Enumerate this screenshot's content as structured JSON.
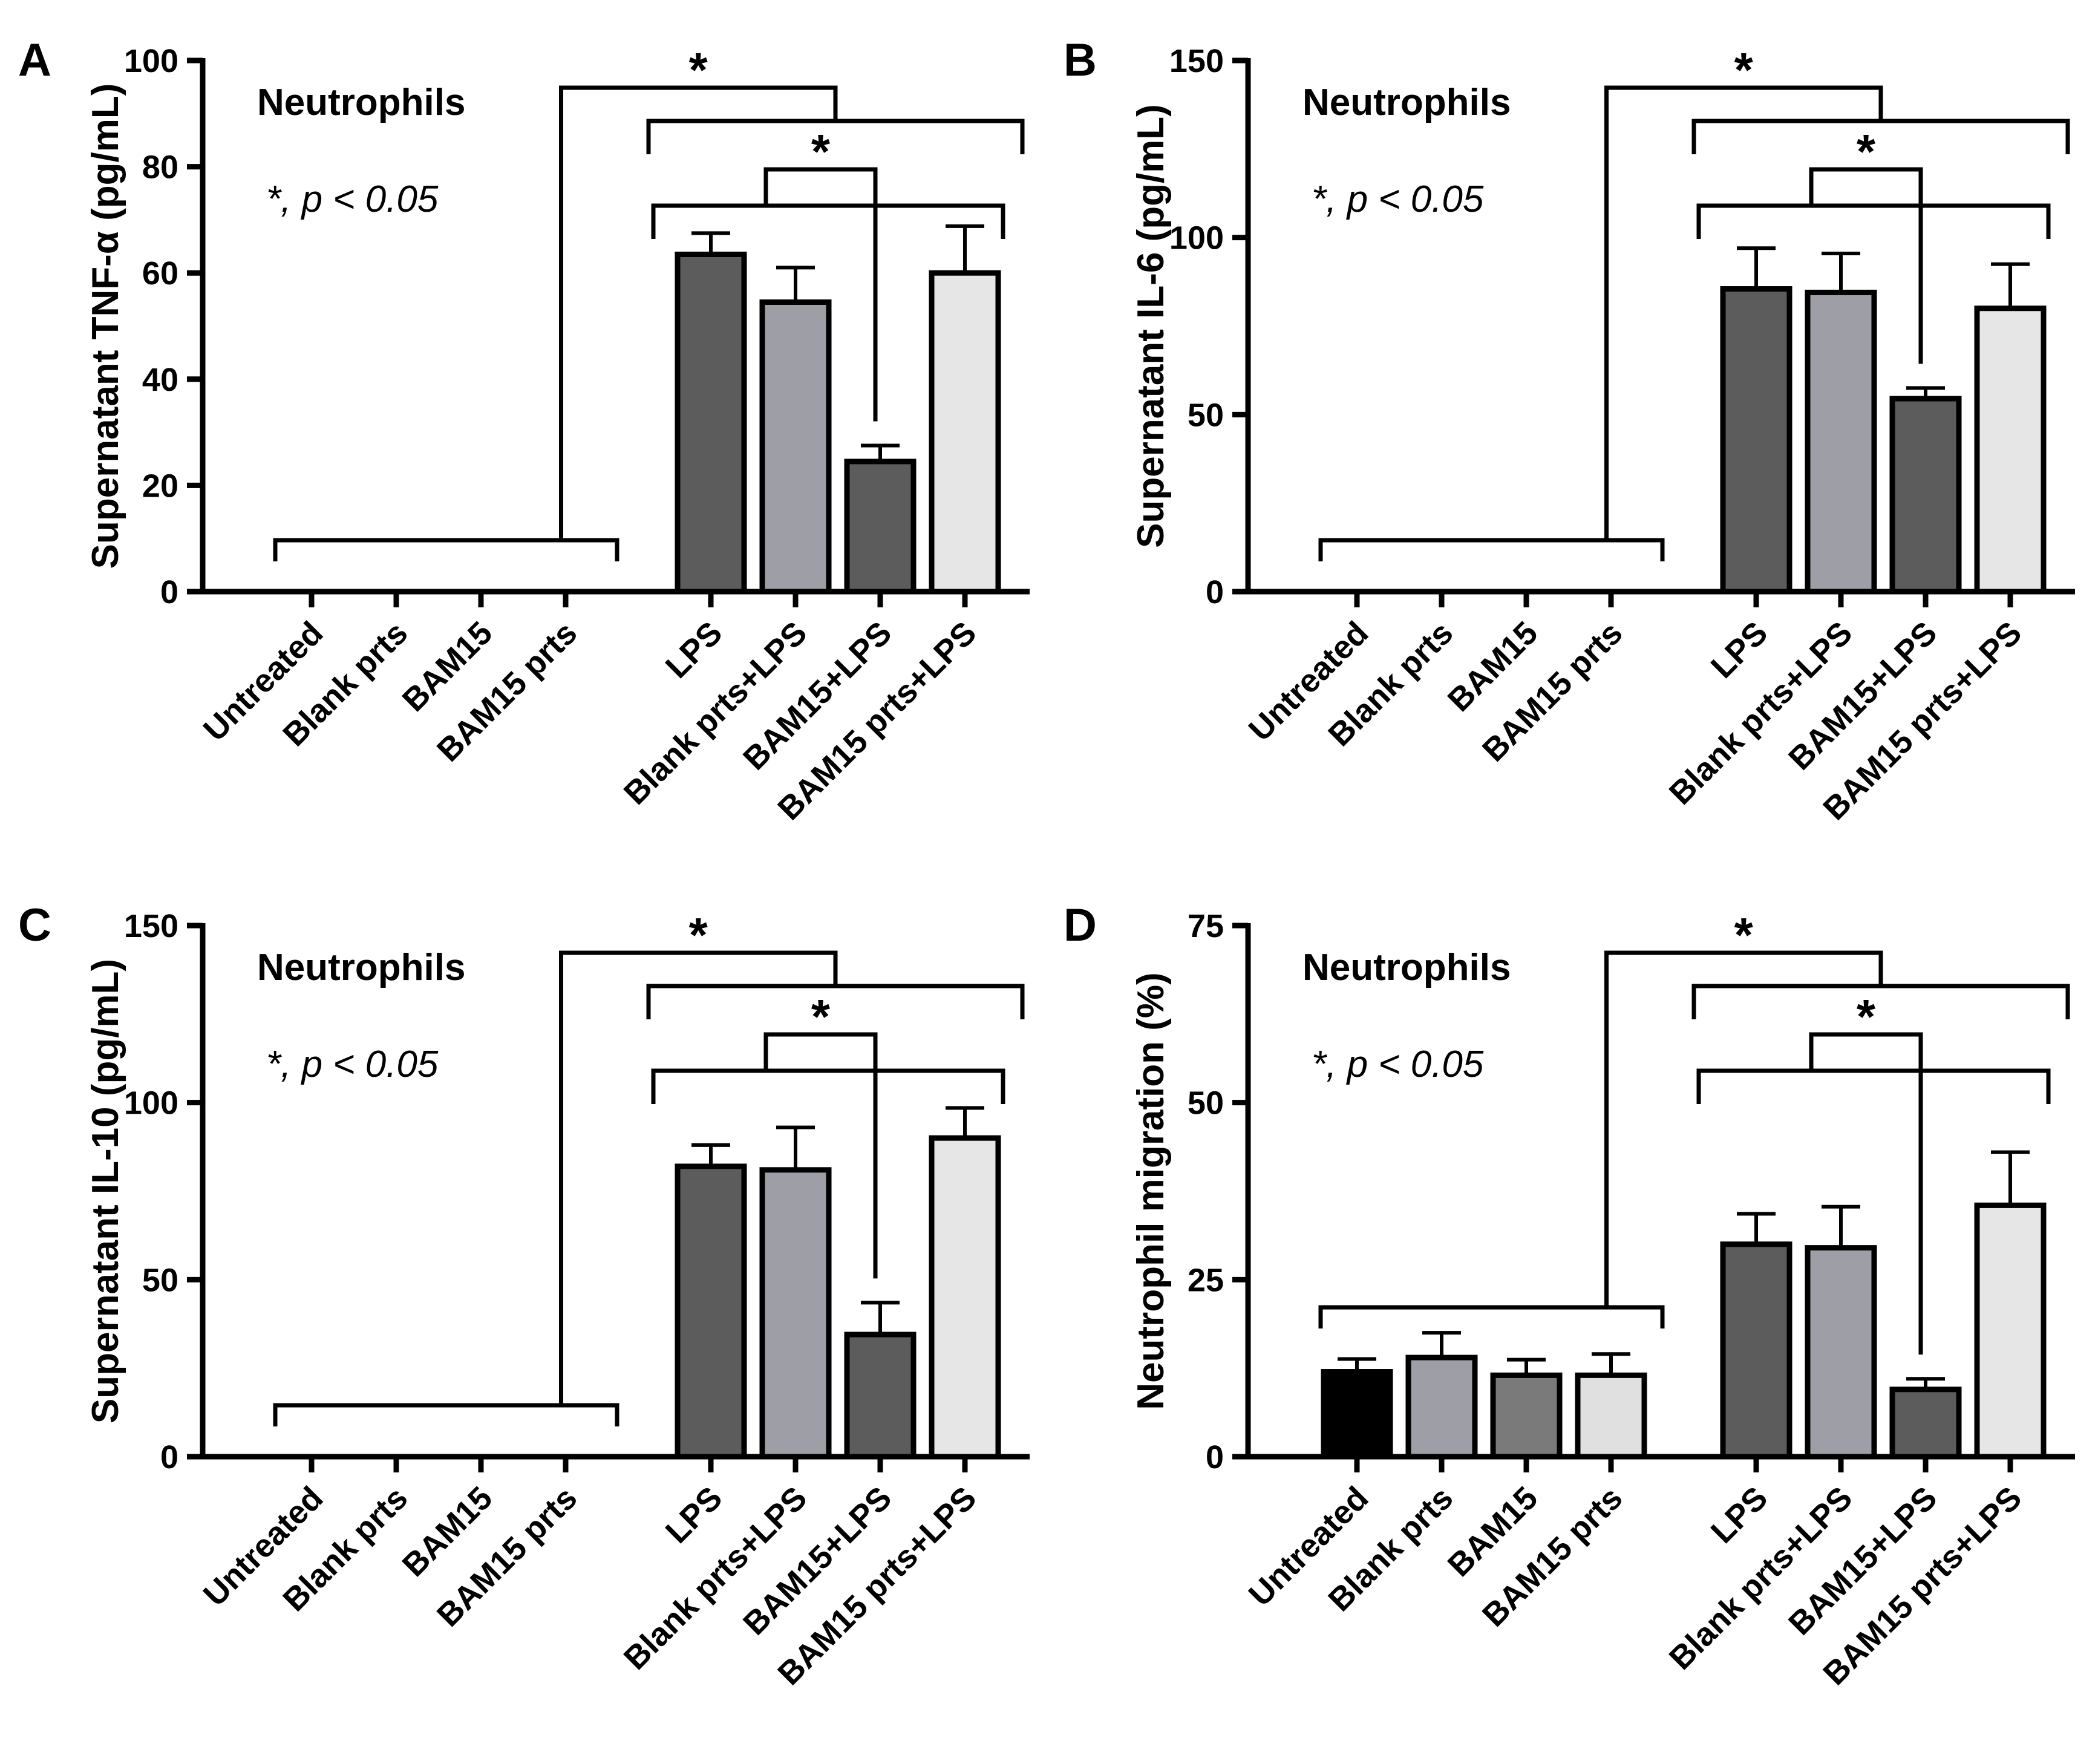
{
  "chart_data": [
    {
      "type": "bar",
      "panel": "A",
      "ylabel": "Supernatant TNF-α (pg/mL)",
      "ylim": [
        0,
        100
      ],
      "yticks": [
        0,
        20,
        40,
        60,
        80,
        100
      ],
      "group_label": "Neutrophils",
      "significance_note": "*, p < 0.05",
      "categories": [
        "Untreated",
        "Blank prts",
        "BAM15",
        "BAM15 prts",
        "LPS",
        "Blank prts+LPS",
        "BAM15+LPS",
        "BAM15 prts+LPS"
      ],
      "values": [
        0,
        0,
        0,
        0,
        63.5,
        54.5,
        24.5,
        60
      ],
      "errors": [
        0,
        0,
        0,
        0,
        4,
        6.5,
        3,
        8.8
      ],
      "bar_colors": [
        "#000000",
        "#9e9ea6",
        "#7a7a7a",
        "#e0e0e0",
        "#5c5c5c",
        "#9e9ea6",
        "#5c5c5c",
        "#e6e6e6"
      ],
      "brackets": [
        {
          "left_group": [
            0,
            3
          ],
          "right_group": [
            4,
            7
          ],
          "label": "*"
        },
        {
          "left_group": [
            4,
            5
          ],
          "right_group": [
            6,
            6
          ],
          "label": "*"
        }
      ]
    },
    {
      "type": "bar",
      "panel": "B",
      "ylabel": "Supernatant IL-6 (pg/mL)",
      "ylim": [
        0,
        150
      ],
      "yticks": [
        0,
        50,
        100,
        150
      ],
      "group_label": "Neutrophils",
      "significance_note": "*, p < 0.05",
      "categories": [
        "Untreated",
        "Blank prts",
        "BAM15",
        "BAM15 prts",
        "LPS",
        "Blank prts+LPS",
        "BAM15+LPS",
        "BAM15 prts+LPS"
      ],
      "values": [
        0,
        0,
        0,
        0,
        85.5,
        84.5,
        54.5,
        80
      ],
      "errors": [
        0,
        0,
        0,
        0,
        11.5,
        11,
        3,
        12.5
      ],
      "bar_colors": [
        "#000000",
        "#9e9ea6",
        "#7a7a7a",
        "#e0e0e0",
        "#5c5c5c",
        "#9e9ea6",
        "#5c5c5c",
        "#e6e6e6"
      ],
      "brackets": [
        {
          "left_group": [
            0,
            3
          ],
          "right_group": [
            4,
            7
          ],
          "label": "*"
        },
        {
          "left_group": [
            4,
            5
          ],
          "right_group": [
            6,
            6
          ],
          "label": "*"
        }
      ]
    },
    {
      "type": "bar",
      "panel": "C",
      "ylabel": "Supernatant IL-10 (pg/mL)",
      "ylim": [
        0,
        150
      ],
      "yticks": [
        0,
        50,
        100,
        150
      ],
      "group_label": "Neutrophils",
      "significance_note": "*, p < 0.05",
      "categories": [
        "Untreated",
        "Blank prts",
        "BAM15",
        "BAM15 prts",
        "LPS",
        "Blank prts+LPS",
        "BAM15+LPS",
        "BAM15 prts+LPS"
      ],
      "values": [
        0,
        0,
        0,
        0,
        82,
        81,
        34.5,
        90
      ],
      "errors": [
        0,
        0,
        0,
        0,
        6,
        12,
        9,
        8.5
      ],
      "bar_colors": [
        "#000000",
        "#9e9ea6",
        "#7a7a7a",
        "#e0e0e0",
        "#5c5c5c",
        "#9e9ea6",
        "#5c5c5c",
        "#e6e6e6"
      ],
      "brackets": [
        {
          "left_group": [
            0,
            3
          ],
          "right_group": [
            4,
            7
          ],
          "label": "*"
        },
        {
          "left_group": [
            4,
            5
          ],
          "right_group": [
            6,
            6
          ],
          "label": "*"
        }
      ]
    },
    {
      "type": "bar",
      "panel": "D",
      "ylabel": "Neutrophil migration (%)",
      "ylim": [
        0,
        75
      ],
      "yticks": [
        0,
        25,
        50,
        75
      ],
      "group_label": "Neutrophils",
      "significance_note": "*, p < 0.05",
      "categories": [
        "Untreated",
        "Blank prts",
        "BAM15",
        "BAM15 prts",
        "LPS",
        "Blank prts+LPS",
        "BAM15+LPS",
        "BAM15 prts+LPS"
      ],
      "values": [
        12,
        14,
        11.5,
        11.5,
        30,
        29.5,
        9.5,
        35.5
      ],
      "errors": [
        1.8,
        3.5,
        2.2,
        3,
        4.3,
        5.8,
        1.5,
        7.5
      ],
      "bar_colors": [
        "#000000",
        "#9e9ea6",
        "#7a7a7a",
        "#e0e0e0",
        "#5c5c5c",
        "#9e9ea6",
        "#5c5c5c",
        "#e6e6e6"
      ],
      "brackets": [
        {
          "left_group": [
            0,
            3
          ],
          "right_group": [
            4,
            7
          ],
          "label": "*"
        },
        {
          "left_group": [
            4,
            5
          ],
          "right_group": [
            6,
            6
          ],
          "label": "*"
        }
      ]
    }
  ]
}
